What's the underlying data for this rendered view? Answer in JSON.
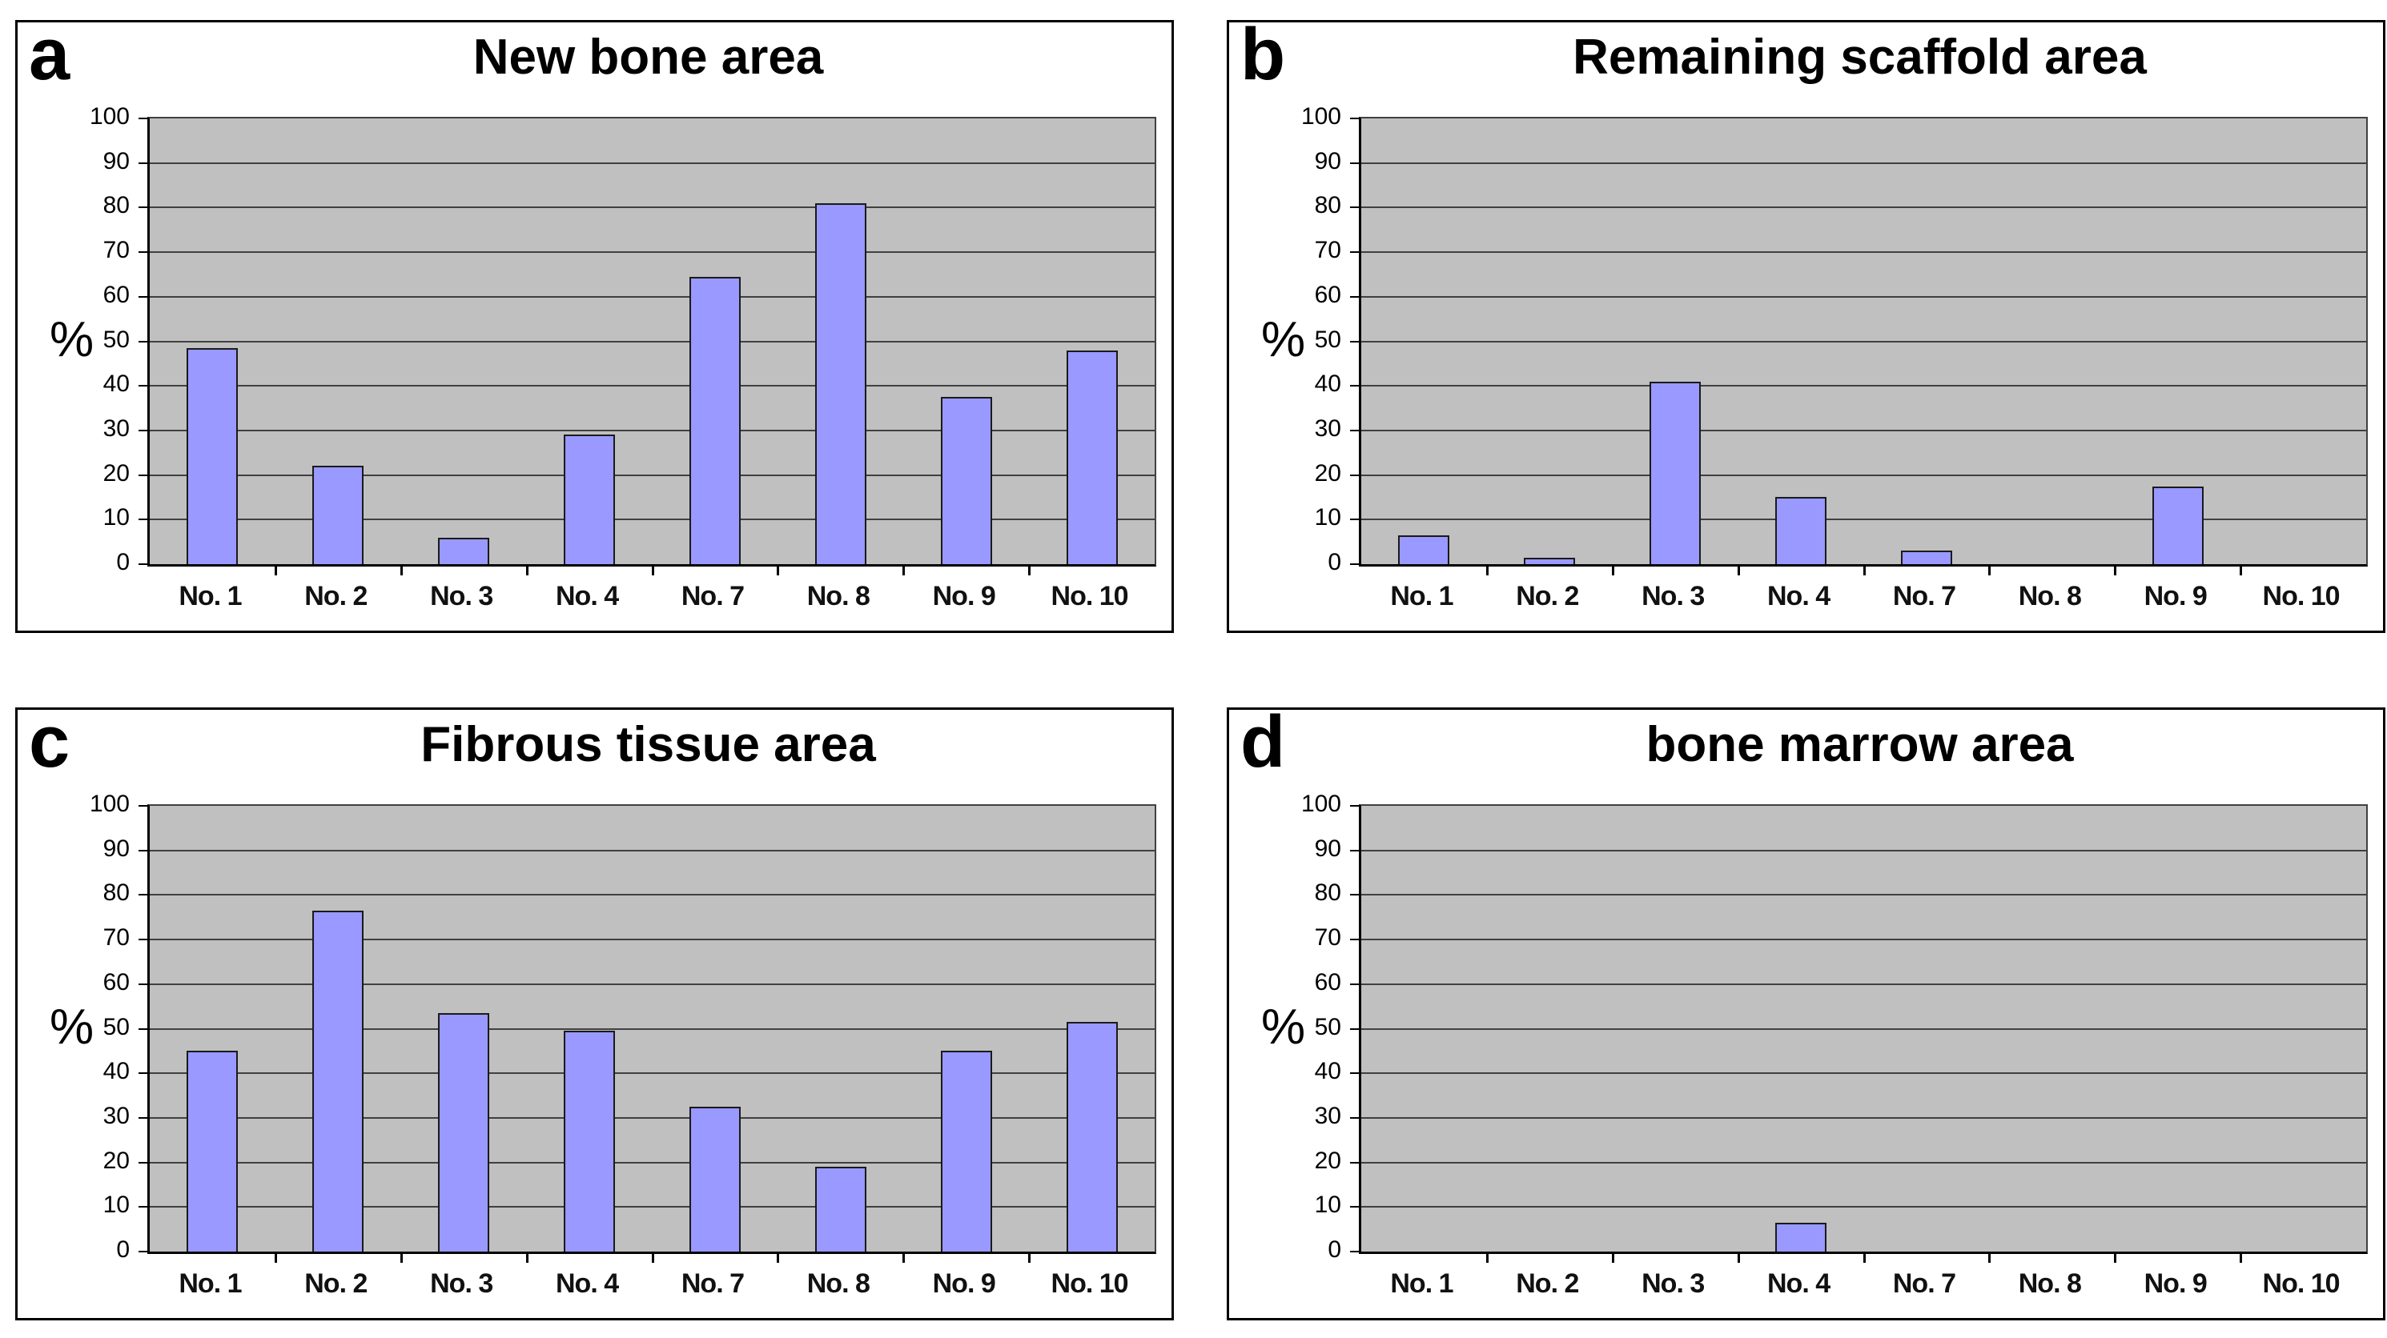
{
  "figure": {
    "background": "#ffffff",
    "panel_letters": [
      "a",
      "b",
      "c",
      "d"
    ]
  },
  "style": {
    "bar_fill": "#9999ff",
    "bar_border": "#1a1a1a",
    "plot_background": "#c0c0c0",
    "gridline_color": "#404040",
    "axis_color": "#000000",
    "panel_border": "#000000",
    "text_color": "#000000"
  },
  "chart_data": [
    {
      "type": "bar",
      "panel_letter": "a",
      "title": "New bone area",
      "ylabel": "%",
      "categories": [
        "No. 1",
        "No. 2",
        "No. 3",
        "No. 4",
        "No. 7",
        "No. 8",
        "No. 9",
        "No. 10"
      ],
      "values": [
        48.5,
        22,
        6,
        29,
        64.5,
        81,
        37.5,
        48
      ],
      "ylim": [
        0,
        100
      ],
      "y_ticks": [
        0,
        10,
        20,
        30,
        40,
        50,
        60,
        70,
        80,
        90,
        100
      ],
      "grid": "horizontal",
      "legend": "none"
    },
    {
      "type": "bar",
      "panel_letter": "b",
      "title": "Remaining scaffold area",
      "ylabel": "%",
      "categories": [
        "No. 1",
        "No. 2",
        "No. 3",
        "No. 4",
        "No. 7",
        "No. 8",
        "No. 9",
        "No. 10"
      ],
      "values": [
        6.5,
        1.5,
        41,
        15,
        3,
        0,
        17.5,
        0
      ],
      "ylim": [
        0,
        100
      ],
      "y_ticks": [
        0,
        10,
        20,
        30,
        40,
        50,
        60,
        70,
        80,
        90,
        100
      ],
      "grid": "horizontal",
      "legend": "none"
    },
    {
      "type": "bar",
      "panel_letter": "c",
      "title": "Fibrous tissue area",
      "ylabel": "%",
      "categories": [
        "No. 1",
        "No. 2",
        "No. 3",
        "No. 4",
        "No. 7",
        "No. 8",
        "No. 9",
        "No. 10"
      ],
      "values": [
        45,
        76.5,
        53.5,
        49.5,
        32.5,
        19,
        45,
        51.5
      ],
      "ylim": [
        0,
        100
      ],
      "y_ticks": [
        0,
        10,
        20,
        30,
        40,
        50,
        60,
        70,
        80,
        90,
        100
      ],
      "grid": "horizontal",
      "legend": "none"
    },
    {
      "type": "bar",
      "panel_letter": "d",
      "title": "bone marrow area",
      "ylabel": "%",
      "categories": [
        "No. 1",
        "No. 2",
        "No. 3",
        "No. 4",
        "No. 7",
        "No. 8",
        "No. 9",
        "No. 10"
      ],
      "values": [
        0,
        0,
        0,
        6.5,
        0,
        0,
        0,
        0
      ],
      "ylim": [
        0,
        100
      ],
      "y_ticks": [
        0,
        10,
        20,
        30,
        40,
        50,
        60,
        70,
        80,
        90,
        100
      ],
      "grid": "horizontal",
      "legend": "none"
    }
  ]
}
